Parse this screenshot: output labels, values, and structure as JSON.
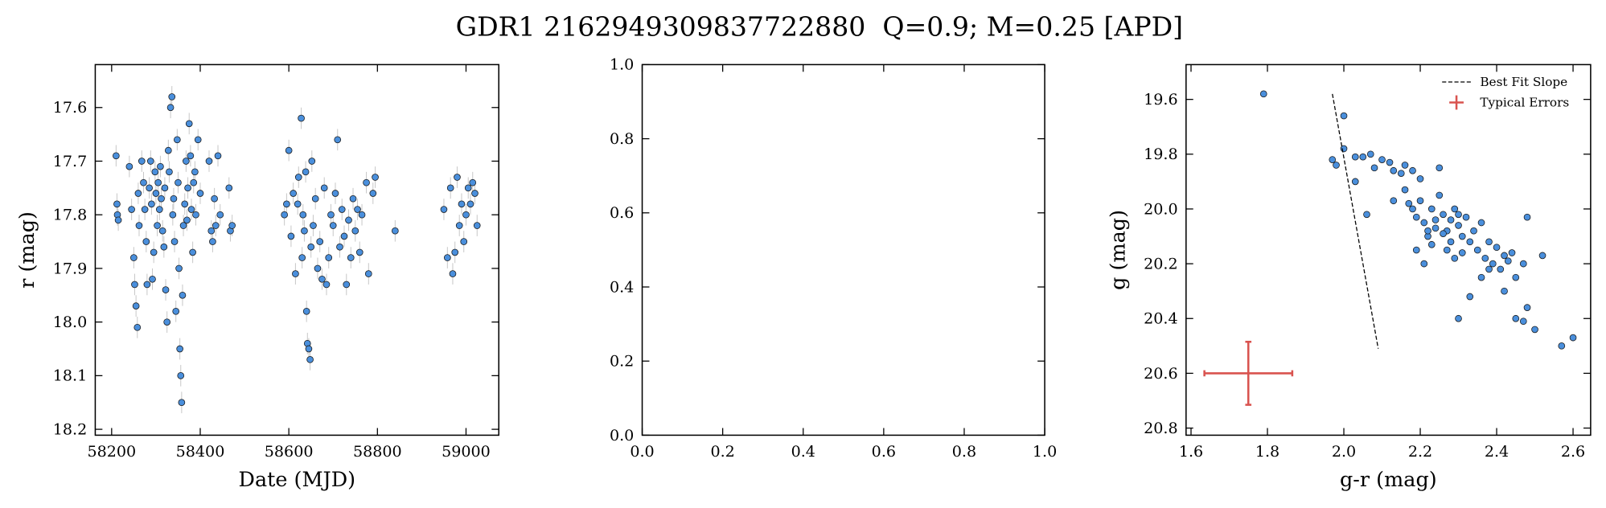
{
  "title": "GDR1 2162949309837722880  Q=0.9; M=0.25 [APD]",
  "chart_data": [
    {
      "type": "scatter",
      "xlabel": "Date (MJD)",
      "ylabel": "r (mag)",
      "color": "#4a8fdc",
      "error_color": "#c8c8c8",
      "xlim": [
        58163,
        59074
      ],
      "ylim": [
        18.211,
        17.52
      ],
      "xticks": [
        58200,
        58400,
        58600,
        58800,
        59000
      ],
      "yticks": [
        17.6,
        17.7,
        17.8,
        17.9,
        {
          "value": 18,
          "label": "18.0"
        },
        18.1,
        18.2
      ],
      "yerr": 0.02,
      "x": [
        58210,
        58212,
        58213,
        58215,
        58240,
        58245,
        58250,
        58252,
        58255,
        58258,
        58260,
        58262,
        58268,
        58272,
        58275,
        58278,
        58280,
        58285,
        58288,
        58290,
        58292,
        58295,
        58298,
        58300,
        58303,
        58305,
        58308,
        58310,
        58312,
        58315,
        58318,
        58320,
        58322,
        58325,
        58328,
        58330,
        58333,
        58336,
        58338,
        58340,
        58342,
        58345,
        58348,
        58350,
        58352,
        58354,
        58356,
        58358,
        58360,
        58362,
        58365,
        58368,
        58370,
        58372,
        58375,
        58378,
        58380,
        58383,
        58385,
        58388,
        58390,
        58395,
        58400,
        58420,
        58425,
        58428,
        58432,
        58435,
        58440,
        58445,
        58465,
        58468,
        58472,
        58590,
        58595,
        58600,
        58605,
        58610,
        58615,
        58620,
        58622,
        58628,
        58630,
        58632,
        58635,
        58638,
        58640,
        58642,
        58645,
        58648,
        58650,
        58652,
        58655,
        58660,
        58665,
        58670,
        58675,
        58680,
        58685,
        58690,
        58695,
        58700,
        58705,
        58710,
        58715,
        58720,
        58725,
        58730,
        58735,
        58740,
        58745,
        58750,
        58755,
        58760,
        58765,
        58775,
        58780,
        58790,
        58795,
        58840,
        58950,
        58958,
        58965,
        58970,
        58975,
        58980,
        58985,
        58990,
        58995,
        59000,
        59005,
        59010,
        59015,
        59020,
        59025
      ],
      "values": [
        17.69,
        17.78,
        17.8,
        17.81,
        17.71,
        17.79,
        17.88,
        17.93,
        17.97,
        18.01,
        17.76,
        17.82,
        17.7,
        17.74,
        17.79,
        17.85,
        17.93,
        17.75,
        17.7,
        17.78,
        17.92,
        17.87,
        17.72,
        17.76,
        17.82,
        17.74,
        17.79,
        17.71,
        17.77,
        17.83,
        17.86,
        17.75,
        17.94,
        18.0,
        17.68,
        17.72,
        17.6,
        17.58,
        17.8,
        17.77,
        17.85,
        17.98,
        17.66,
        17.74,
        17.9,
        18.05,
        18.1,
        18.15,
        17.95,
        17.82,
        17.78,
        17.7,
        17.81,
        17.75,
        17.63,
        17.69,
        17.79,
        17.87,
        17.74,
        17.72,
        17.8,
        17.66,
        17.76,
        17.7,
        17.83,
        17.85,
        17.77,
        17.82,
        17.69,
        17.8,
        17.75,
        17.83,
        17.82,
        17.8,
        17.78,
        17.68,
        17.84,
        17.76,
        17.91,
        17.78,
        17.73,
        17.62,
        17.88,
        17.8,
        17.83,
        17.72,
        17.98,
        18.04,
        18.05,
        18.07,
        17.86,
        17.7,
        17.82,
        17.77,
        17.9,
        17.85,
        17.92,
        17.75,
        17.93,
        17.88,
        17.8,
        17.82,
        17.76,
        17.66,
        17.86,
        17.79,
        17.84,
        17.93,
        17.81,
        17.88,
        17.77,
        17.83,
        17.79,
        17.87,
        17.8,
        17.74,
        17.91,
        17.76,
        17.73,
        17.83,
        17.79,
        17.88,
        17.75,
        17.91,
        17.87,
        17.73,
        17.82,
        17.78,
        17.85,
        17.8,
        17.75,
        17.78,
        17.74,
        17.76,
        17.82
      ]
    },
    {
      "type": "scatter",
      "xlim": [
        0,
        1
      ],
      "ylim": [
        0,
        1
      ],
      "xticks": [
        {
          "value": 0,
          "label": "0.0"
        },
        0.2,
        0.4,
        0.6,
        0.8,
        {
          "value": 1,
          "label": "1.0"
        }
      ],
      "yticks": [
        {
          "value": 0,
          "label": "0.0"
        },
        0.2,
        0.4,
        0.6,
        0.8,
        {
          "value": 1,
          "label": "1.0"
        }
      ]
    },
    {
      "type": "scatter",
      "xlabel": "g-r (mag)",
      "ylabel": "g (mag)",
      "color": "#4a8fdc",
      "legend": "upper right",
      "xlim": [
        1.587,
        2.646
      ],
      "ylim": [
        20.826,
        19.473
      ],
      "xticks": [
        1.6,
        1.8,
        {
          "value": 2,
          "label": "2.0"
        },
        2.2,
        2.4,
        2.6
      ],
      "yticks": [
        19.6,
        19.8,
        {
          "value": 20,
          "label": "20.0"
        },
        20.2,
        20.4,
        20.6,
        20.8
      ],
      "x": [
        1.79,
        2.0,
        1.97,
        1.98,
        2.0,
        2.03,
        2.05,
        2.07,
        2.08,
        2.1,
        2.12,
        2.13,
        2.15,
        2.16,
        2.18,
        2.2,
        2.25,
        2.03,
        2.06,
        2.13,
        2.16,
        2.17,
        2.18,
        2.19,
        2.2,
        2.21,
        2.22,
        2.23,
        2.24,
        2.25,
        2.26,
        2.27,
        2.28,
        2.29,
        2.3,
        2.31,
        2.32,
        2.33,
        2.34,
        2.35,
        2.36,
        2.37,
        2.38,
        2.39,
        2.4,
        2.41,
        2.42,
        2.43,
        2.44,
        2.45,
        2.47,
        2.48,
        2.52,
        2.19,
        2.21,
        2.23,
        2.27,
        2.29,
        2.31,
        2.33,
        2.36,
        2.38,
        2.3,
        2.42,
        2.45,
        2.47,
        2.48,
        2.5,
        2.57,
        2.6,
        2.26,
        2.28,
        2.3,
        2.24,
        2.22
      ],
      "values": [
        19.58,
        19.66,
        19.82,
        19.84,
        19.78,
        19.81,
        19.81,
        19.8,
        19.85,
        19.82,
        19.83,
        19.86,
        19.87,
        19.84,
        19.86,
        19.89,
        19.85,
        19.9,
        20.02,
        19.97,
        19.93,
        19.98,
        20.0,
        20.03,
        19.97,
        20.05,
        20.1,
        20.0,
        20.07,
        19.95,
        20.02,
        20.08,
        20.04,
        20.0,
        20.06,
        20.1,
        20.03,
        20.12,
        20.08,
        20.15,
        20.05,
        20.18,
        20.12,
        20.2,
        20.14,
        20.22,
        20.17,
        20.19,
        20.16,
        20.25,
        20.2,
        20.03,
        20.17,
        20.15,
        20.2,
        20.13,
        20.15,
        20.18,
        20.16,
        20.32,
        20.25,
        20.22,
        20.4,
        20.3,
        20.4,
        20.41,
        20.36,
        20.44,
        20.5,
        20.47,
        20.09,
        20.12,
        20.02,
        20.04,
        20.08
      ],
      "fit": {
        "name": "Best Fit Slope",
        "color": "#000000",
        "x": [
          1.97,
          2.09
        ],
        "values": [
          19.58,
          20.51
        ]
      },
      "typical_error": {
        "name": "Typical Errors",
        "color": "#d9534f",
        "x": 1.75,
        "value": 20.6,
        "xerr": 0.115,
        "yerr": 0.115
      }
    }
  ]
}
